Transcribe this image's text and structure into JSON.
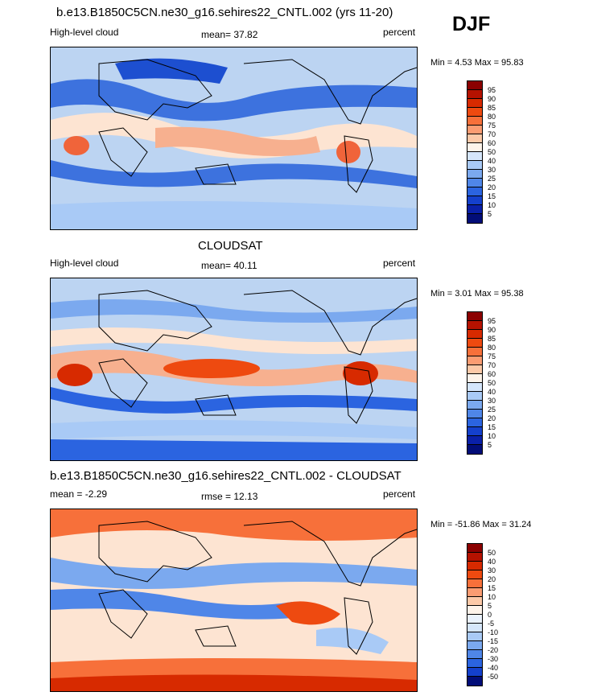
{
  "season": "DJF",
  "panels": [
    {
      "title": "b.e13.B1850C5CN.ne30_g16.sehires22_CNTL.002 (yrs 11-20)",
      "left_label": "High-level cloud",
      "center_label": "mean=  37.82",
      "right_label": "percent",
      "minmax": "Min =   4.53 Max =  95.83"
    },
    {
      "title": "CLOUDSAT",
      "left_label": "High-level cloud",
      "center_label": "mean=  40.11",
      "right_label": "percent",
      "minmax": "Min =   3.01 Max =  95.38"
    },
    {
      "title": "b.e13.B1850C5CN.ne30_g16.sehires22_CNTL.002 - CLOUDSAT",
      "left_label": "mean =  -2.29",
      "center_label": "rmse =  12.13",
      "right_label": "percent",
      "minmax": "Min = -51.86 Max =  31.24"
    }
  ],
  "colorbar_abs": {
    "labels": [
      "95",
      "90",
      "85",
      "80",
      "75",
      "70",
      "60",
      "50",
      "40",
      "30",
      "25",
      "20",
      "15",
      "10",
      "5"
    ],
    "colors": [
      "#8b0000",
      "#b51200",
      "#d72a00",
      "#ee4a10",
      "#f7703a",
      "#fb9c72",
      "#fcc9a8",
      "#fdf3ea",
      "#d5e6fb",
      "#a9caf6",
      "#7ba9ef",
      "#4f86e8",
      "#2b64e0",
      "#1440cc",
      "#0a20a8",
      "#020d78"
    ]
  },
  "colorbar_diff": {
    "labels": [
      "50",
      "40",
      "30",
      "20",
      "15",
      "10",
      "5",
      "0",
      "-5",
      "-10",
      "-15",
      "-20",
      "-30",
      "-40",
      "-50"
    ],
    "colors": [
      "#8b0000",
      "#b51200",
      "#d72a00",
      "#ee4a10",
      "#f7703a",
      "#fb9c72",
      "#fcc9a8",
      "#fdf3ea",
      "#eaf2fd",
      "#d5e6fb",
      "#a9caf6",
      "#7ba9ef",
      "#4f86e8",
      "#2b64e0",
      "#1440cc",
      "#020d78"
    ]
  }
}
